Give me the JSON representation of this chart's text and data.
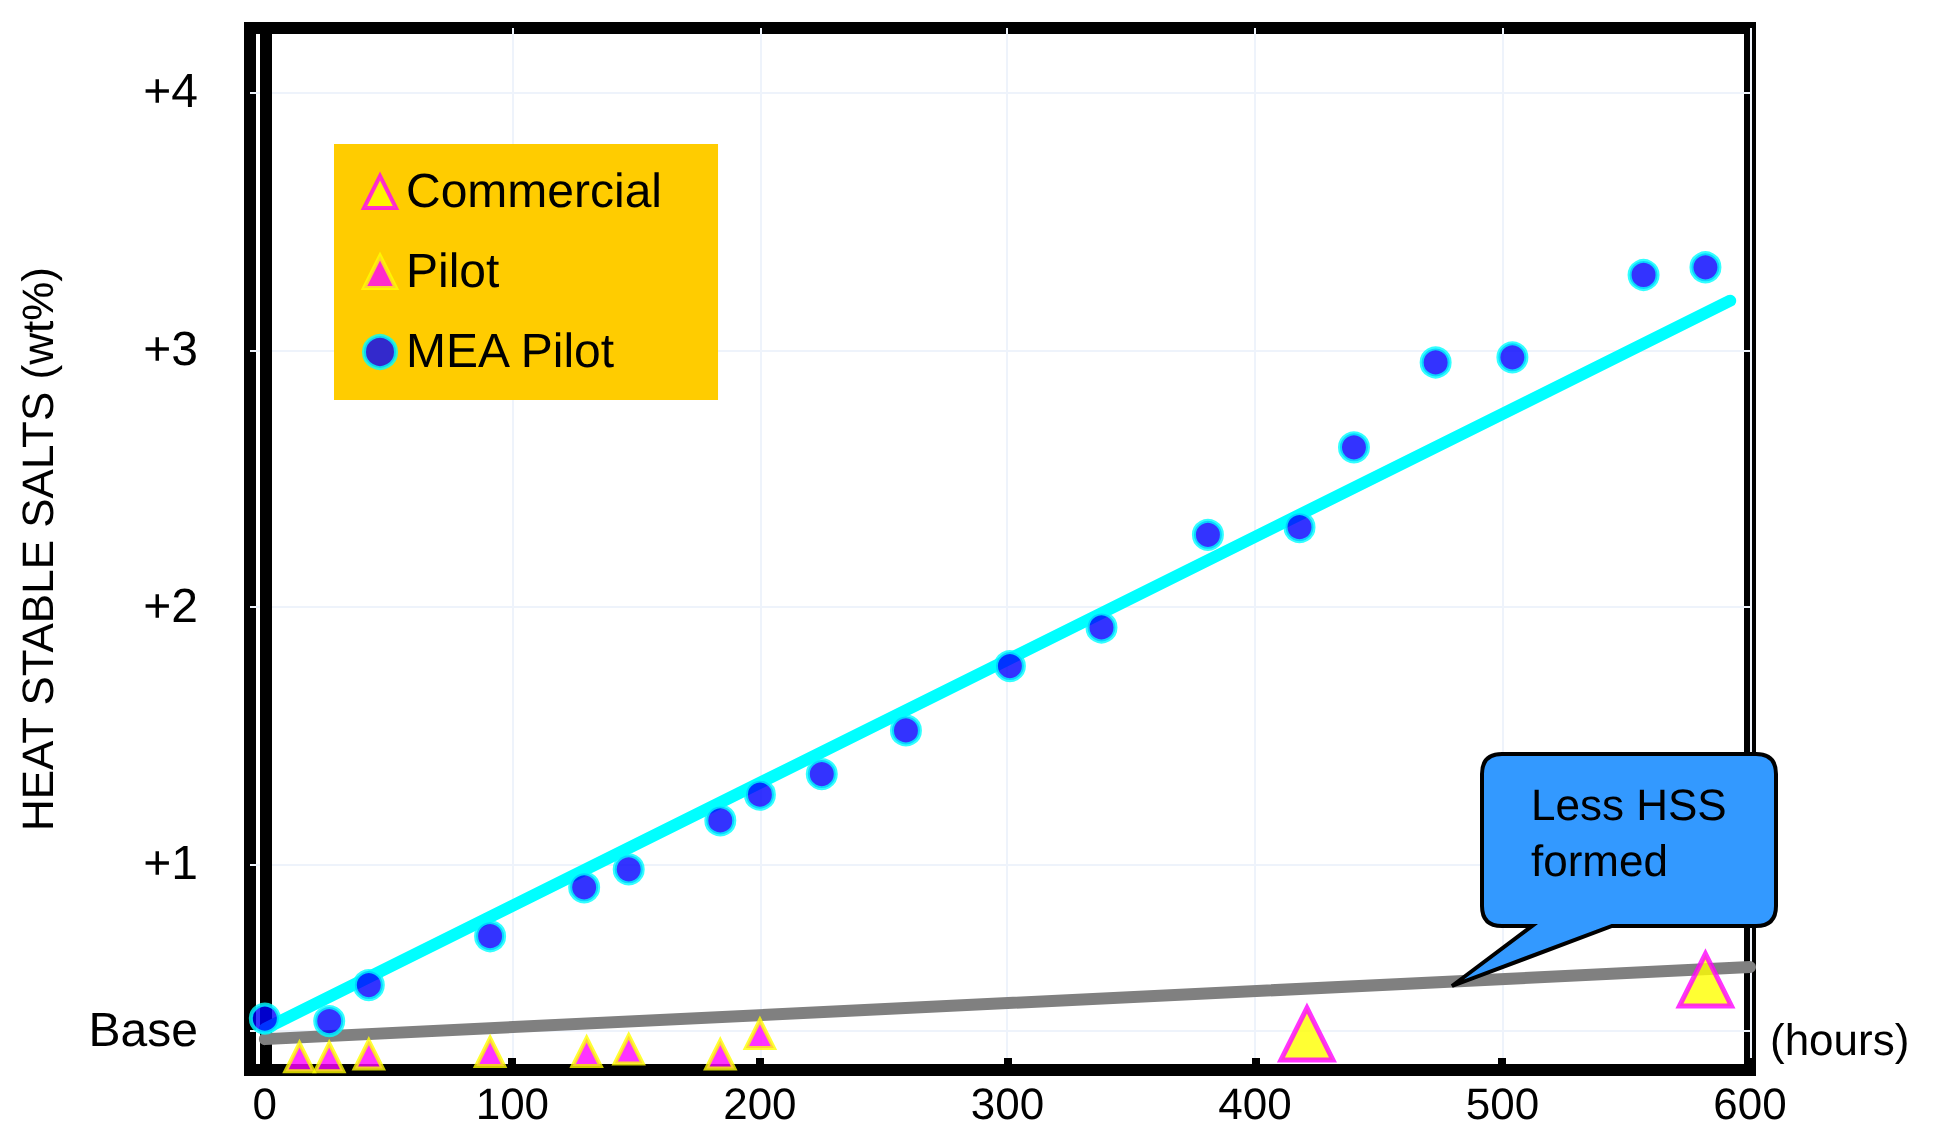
{
  "chart_data": {
    "type": "scatter",
    "xlabel": "(hours)",
    "ylabel": "HEAT STABLE SALTS (wt%)",
    "xlim": [
      -6,
      600
    ],
    "xticks": [
      0,
      100,
      200,
      300,
      400,
      500,
      600
    ],
    "ylim": [
      0.2,
      4.25
    ],
    "yticks": [
      {
        "value": 0.35,
        "label": "Base"
      },
      {
        "value": 1,
        "label": "+1"
      },
      {
        "value": 2,
        "label": "+2"
      },
      {
        "value": 3,
        "label": "+3"
      },
      {
        "value": 4,
        "label": "+4"
      }
    ],
    "grid": true,
    "legend": "top left",
    "annotations": [
      {
        "text": "Less HSS formed",
        "x": 480,
        "y": 0.51
      }
    ],
    "series": [
      {
        "name": "Commercial",
        "marker": "triangle",
        "color": "#ffff00",
        "x": [
          421,
          582
        ],
        "values": [
          0.34,
          0.55
        ]
      },
      {
        "name": "Pilot",
        "marker": "triangle",
        "color": "#ff00ff",
        "x": [
          14,
          26,
          42,
          91,
          130,
          147,
          184,
          200
        ],
        "values": [
          0.25,
          0.25,
          0.26,
          0.27,
          0.27,
          0.28,
          0.26,
          0.34
        ]
      },
      {
        "name": "MEA Pilot",
        "marker": "circle",
        "color": "#0000ff",
        "x": [
          0,
          26,
          42,
          91,
          129,
          147,
          184,
          200,
          225,
          259,
          301,
          338,
          381,
          418,
          440,
          473,
          504,
          557,
          582
        ],
        "values": [
          0.4,
          0.39,
          0.53,
          0.72,
          0.91,
          0.98,
          1.17,
          1.27,
          1.35,
          1.52,
          1.77,
          1.92,
          2.28,
          2.31,
          2.62,
          2.95,
          2.97,
          3.29,
          3.32
        ]
      },
      {
        "type": "line",
        "color": "#00ffff",
        "x": [
          0,
          592
        ],
        "values": [
          0.36,
          3.19
        ]
      },
      {
        "type": "line",
        "color": "#808080",
        "x": [
          0,
          600
        ],
        "values": [
          0.32,
          0.6
        ]
      }
    ]
  }
}
